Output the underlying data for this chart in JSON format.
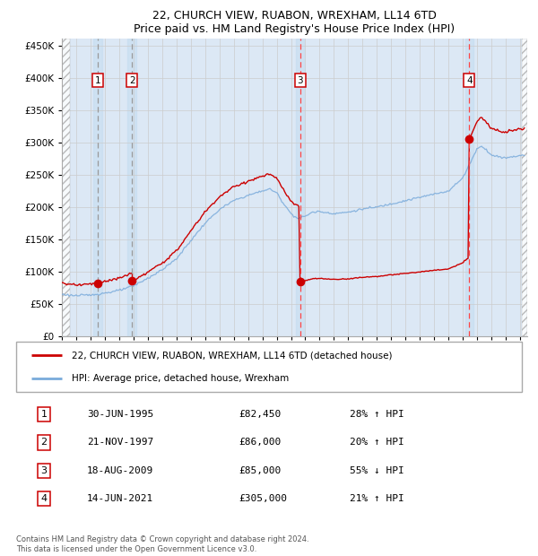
{
  "title": "22, CHURCH VIEW, RUABON, WREXHAM, LL14 6TD",
  "subtitle": "Price paid vs. HM Land Registry's House Price Index (HPI)",
  "ylim": [
    0,
    460000
  ],
  "yticks": [
    0,
    50000,
    100000,
    150000,
    200000,
    250000,
    300000,
    350000,
    400000,
    450000
  ],
  "xlim_start": 1993.0,
  "xlim_end": 2025.5,
  "sales": [
    {
      "date": 1995.496,
      "price": 82450,
      "label": "1"
    },
    {
      "date": 1997.893,
      "price": 86000,
      "label": "2"
    },
    {
      "date": 2009.632,
      "price": 85000,
      "label": "3"
    },
    {
      "date": 2021.452,
      "price": 305000,
      "label": "4"
    }
  ],
  "vline_colors": [
    "#999999",
    "#999999",
    "#ff4444",
    "#ff4444"
  ],
  "sale_marker_color": "#cc0000",
  "hpi_line_color": "#7aabdb",
  "price_line_color": "#cc0000",
  "legend_entries": [
    "22, CHURCH VIEW, RUABON, WREXHAM, LL14 6TD (detached house)",
    "HPI: Average price, detached house, Wrexham"
  ],
  "table_rows": [
    {
      "num": "1",
      "date": "30-JUN-1995",
      "price": "£82,450",
      "hpi": "28% ↑ HPI"
    },
    {
      "num": "2",
      "date": "21-NOV-1997",
      "price": "£86,000",
      "hpi": "20% ↑ HPI"
    },
    {
      "num": "3",
      "date": "18-AUG-2009",
      "price": "£85,000",
      "hpi": "55% ↓ HPI"
    },
    {
      "num": "4",
      "date": "14-JUN-2021",
      "price": "£305,000",
      "hpi": "21% ↑ HPI"
    }
  ],
  "footnote": "Contains HM Land Registry data © Crown copyright and database right 2024.\nThis data is licensed under the Open Government Licence v3.0.",
  "grid_color": "#cccccc",
  "plot_bg_color": "#dce8f5"
}
